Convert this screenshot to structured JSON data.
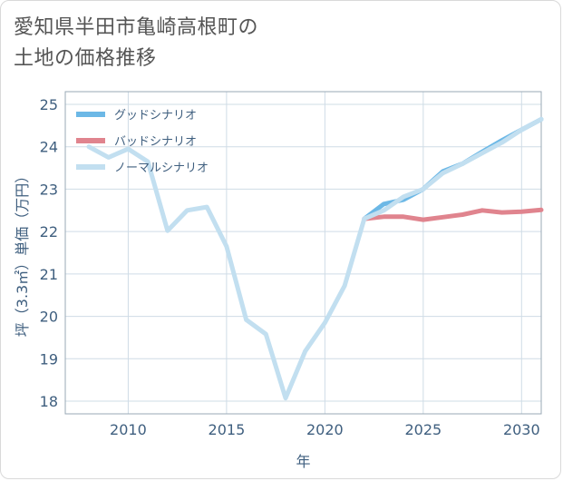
{
  "title": {
    "line1": "愛知県半田市亀崎高根町の",
    "line2": "土地の価格推移"
  },
  "colors": {
    "good": "#6cb8e6",
    "bad": "#e0848e",
    "normal": "#c2dff0",
    "grid": "#cfdce6",
    "axis": "#3f5f7f"
  },
  "chart_data": {
    "type": "line",
    "title": "愛知県半田市亀崎高根町の土地の価格推移",
    "xlabel": "年",
    "ylabel": "坪（3.3㎡）単価（万円）",
    "xlim": [
      2006.8,
      2031
    ],
    "ylim": [
      17.7,
      25.3
    ],
    "xticks": [
      2010,
      2015,
      2020,
      2025,
      2030
    ],
    "yticks": [
      18,
      19,
      20,
      21,
      22,
      23,
      24,
      25
    ],
    "legend": "top-left",
    "series": [
      {
        "name": "グッドシナリオ",
        "color": "#6cb8e6",
        "x": [
          2022,
          2023,
          2024,
          2025,
          2026,
          2027,
          2028,
          2029,
          2030,
          2031
        ],
        "y": [
          22.3,
          22.65,
          22.75,
          23.0,
          23.42,
          23.6,
          23.88,
          24.15,
          24.4,
          24.65
        ]
      },
      {
        "name": "バッドシナリオ",
        "color": "#e0848e",
        "x": [
          2022,
          2023,
          2024,
          2025,
          2026,
          2027,
          2028,
          2029,
          2030,
          2031
        ],
        "y": [
          22.3,
          22.35,
          22.35,
          22.28,
          22.34,
          22.4,
          22.5,
          22.45,
          22.47,
          22.51
        ]
      },
      {
        "name": "ノーマルシナリオ",
        "color": "#c2dff0",
        "x": [
          2008,
          2009,
          2010,
          2011,
          2012,
          2013,
          2014,
          2015,
          2016,
          2017,
          2018,
          2019,
          2020,
          2021,
          2022,
          2023,
          2024,
          2025,
          2026,
          2027,
          2028,
          2029,
          2030,
          2031
        ],
        "y": [
          24.0,
          23.75,
          23.95,
          23.65,
          22.02,
          22.5,
          22.58,
          21.65,
          19.92,
          19.58,
          18.07,
          19.18,
          19.85,
          20.72,
          22.3,
          22.5,
          22.82,
          23.0,
          23.38,
          23.6,
          23.85,
          24.1,
          24.4,
          24.65
        ]
      }
    ]
  }
}
